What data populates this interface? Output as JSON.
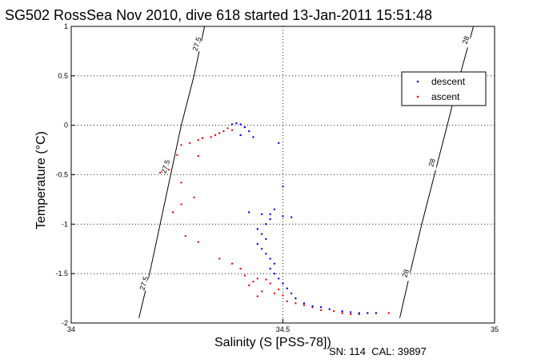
{
  "chart_data": {
    "type": "scatter",
    "title": "SG502 RossSea Nov 2010, dive 618 started 13-Jan-2011 15:51:48",
    "xlabel": "Salinity (S [PSS-78])",
    "ylabel": "Temperature (°C)",
    "xlim": [
      34,
      35
    ],
    "ylim": [
      -2,
      1
    ],
    "xticks": [
      34,
      34.5,
      35
    ],
    "yticks": [
      -2,
      -1.5,
      -1,
      -0.5,
      0,
      0.5,
      1
    ],
    "xtick_labels": [
      "34",
      "34.5",
      "35"
    ],
    "ytick_labels": [
      "-2",
      "-1.5",
      "-1",
      "-0.5",
      "0",
      "0.5",
      "1"
    ],
    "grid": true,
    "legend_position": "top-right",
    "footer": "SN: 114  CAL: 39897",
    "contours": [
      {
        "label": "27.5",
        "points": [
          [
            34.16,
            -1.95
          ],
          [
            34.185,
            -1.5
          ],
          [
            34.21,
            -1.0
          ],
          [
            34.235,
            -0.5
          ],
          [
            34.26,
            0.0
          ],
          [
            34.29,
            0.5
          ],
          [
            34.315,
            1.0
          ]
        ],
        "label_positions": [
          [
            34.173,
            -1.6
          ],
          [
            34.224,
            -0.42
          ],
          [
            34.298,
            0.82
          ]
        ]
      },
      {
        "label": "28",
        "points": [
          [
            34.776,
            -1.95
          ],
          [
            34.8,
            -1.5
          ],
          [
            34.828,
            -1.0
          ],
          [
            34.858,
            -0.5
          ],
          [
            34.888,
            0.0
          ],
          [
            34.918,
            0.5
          ],
          [
            34.95,
            1.0
          ]
        ],
        "label_positions": [
          [
            34.791,
            -1.5
          ],
          [
            34.853,
            -0.38
          ],
          [
            34.933,
            0.86
          ]
        ]
      }
    ],
    "series": [
      {
        "name": "descent",
        "color": "#0000ff",
        "points": [
          [
            34.38,
            0.01
          ],
          [
            34.39,
            0.02
          ],
          [
            34.4,
            0.01
          ],
          [
            34.41,
            -0.02
          ],
          [
            34.42,
            -0.06
          ],
          [
            34.43,
            -0.12
          ],
          [
            34.4,
            -0.1
          ],
          [
            34.49,
            -0.18
          ],
          [
            34.5,
            -0.62
          ],
          [
            34.48,
            -0.85
          ],
          [
            34.47,
            -0.9
          ],
          [
            34.45,
            -0.9
          ],
          [
            34.42,
            -0.88
          ],
          [
            34.47,
            -0.95
          ],
          [
            34.46,
            -1.0
          ],
          [
            34.44,
            -1.05
          ],
          [
            34.45,
            -1.1
          ],
          [
            34.46,
            -1.15
          ],
          [
            34.44,
            -1.2
          ],
          [
            34.45,
            -1.25
          ],
          [
            34.46,
            -1.3
          ],
          [
            34.47,
            -1.35
          ],
          [
            34.48,
            -1.4
          ],
          [
            34.5,
            -0.92
          ],
          [
            34.52,
            -0.93
          ],
          [
            34.47,
            -1.45
          ],
          [
            34.48,
            -1.5
          ],
          [
            34.49,
            -1.55
          ],
          [
            34.5,
            -1.6
          ],
          [
            34.51,
            -1.65
          ],
          [
            34.52,
            -1.7
          ],
          [
            34.53,
            -1.75
          ],
          [
            34.55,
            -1.8
          ],
          [
            34.57,
            -1.83
          ],
          [
            34.59,
            -1.84
          ],
          [
            34.61,
            -1.86
          ],
          [
            34.64,
            -1.88
          ],
          [
            34.66,
            -1.89
          ],
          [
            34.68,
            -1.9
          ],
          [
            34.7,
            -1.9
          ],
          [
            34.72,
            -1.9
          ]
        ]
      },
      {
        "name": "ascent",
        "color": "#ff0000",
        "points": [
          [
            34.37,
            -0.03
          ],
          [
            34.38,
            -0.05
          ],
          [
            34.36,
            -0.06
          ],
          [
            34.35,
            -0.08
          ],
          [
            34.34,
            -0.1
          ],
          [
            34.33,
            -0.12
          ],
          [
            34.31,
            -0.13
          ],
          [
            34.3,
            -0.15
          ],
          [
            34.28,
            -0.18
          ],
          [
            34.26,
            -0.2
          ],
          [
            34.25,
            -0.3
          ],
          [
            34.23,
            -0.45
          ],
          [
            34.21,
            -0.48
          ],
          [
            34.3,
            -0.31
          ],
          [
            34.26,
            -0.58
          ],
          [
            34.29,
            -0.73
          ],
          [
            34.24,
            -0.88
          ],
          [
            34.26,
            -0.8
          ],
          [
            34.27,
            -1.12
          ],
          [
            34.3,
            -1.18
          ],
          [
            34.35,
            -1.35
          ],
          [
            34.38,
            -1.4
          ],
          [
            34.4,
            -1.45
          ],
          [
            34.41,
            -1.52
          ],
          [
            34.43,
            -1.58
          ],
          [
            34.42,
            -1.62
          ],
          [
            34.45,
            -1.68
          ],
          [
            34.44,
            -1.73
          ],
          [
            34.47,
            -1.6
          ],
          [
            34.49,
            -1.66
          ],
          [
            34.51,
            -1.78
          ],
          [
            34.53,
            -1.8
          ],
          [
            34.55,
            -1.82
          ],
          [
            34.57,
            -1.84
          ],
          [
            34.59,
            -1.87
          ],
          [
            34.62,
            -1.88
          ],
          [
            34.64,
            -1.9
          ],
          [
            34.66,
            -1.91
          ],
          [
            34.68,
            -1.91
          ],
          [
            34.7,
            -1.9
          ],
          [
            34.72,
            -1.9
          ],
          [
            34.75,
            -1.9
          ],
          [
            34.44,
            -1.55
          ],
          [
            34.46,
            -1.56
          ],
          [
            34.48,
            -1.7
          ],
          [
            34.5,
            -1.72
          ]
        ]
      }
    ]
  }
}
